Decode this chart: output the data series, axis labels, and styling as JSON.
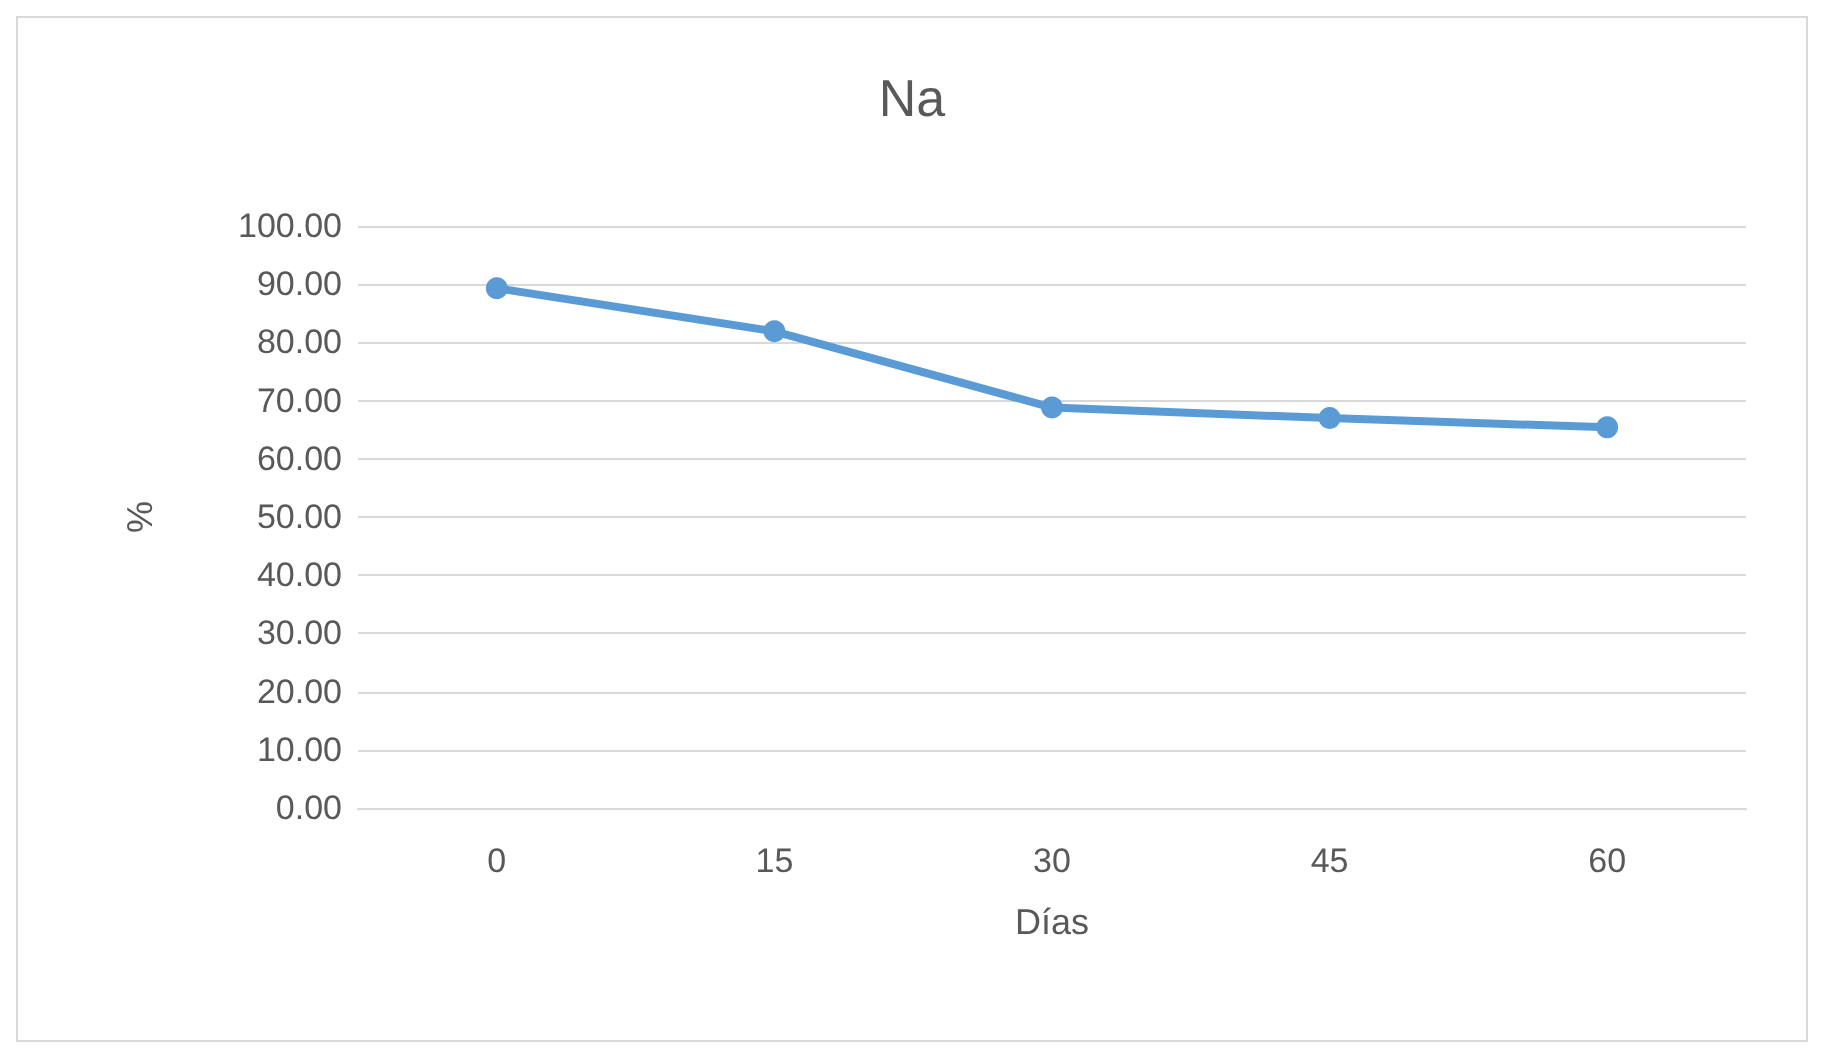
{
  "chart_data": {
    "type": "line",
    "title": "Na",
    "xlabel": "Días",
    "ylabel": "%",
    "categories": [
      "0",
      "15",
      "30",
      "45",
      "60"
    ],
    "series": [
      {
        "color": "#5b9bd5",
        "values": [
          89.3,
          81.9,
          68.8,
          67.0,
          65.4
        ]
      }
    ],
    "ylim": [
      0,
      100
    ],
    "yticks": [
      {
        "value": 0,
        "label": "0.00"
      },
      {
        "value": 10,
        "label": "10.00"
      },
      {
        "value": 20,
        "label": "20.00"
      },
      {
        "value": 30,
        "label": "30.00"
      },
      {
        "value": 40,
        "label": "40.00"
      },
      {
        "value": 50,
        "label": "50.00"
      },
      {
        "value": 60,
        "label": "60.00"
      },
      {
        "value": 70,
        "label": "70.00"
      },
      {
        "value": 80,
        "label": "80.00"
      },
      {
        "value": 90,
        "label": "90.00"
      },
      {
        "value": 100,
        "label": "100.00"
      }
    ],
    "grid": "y",
    "marker": "circle",
    "line_style": "solid"
  }
}
